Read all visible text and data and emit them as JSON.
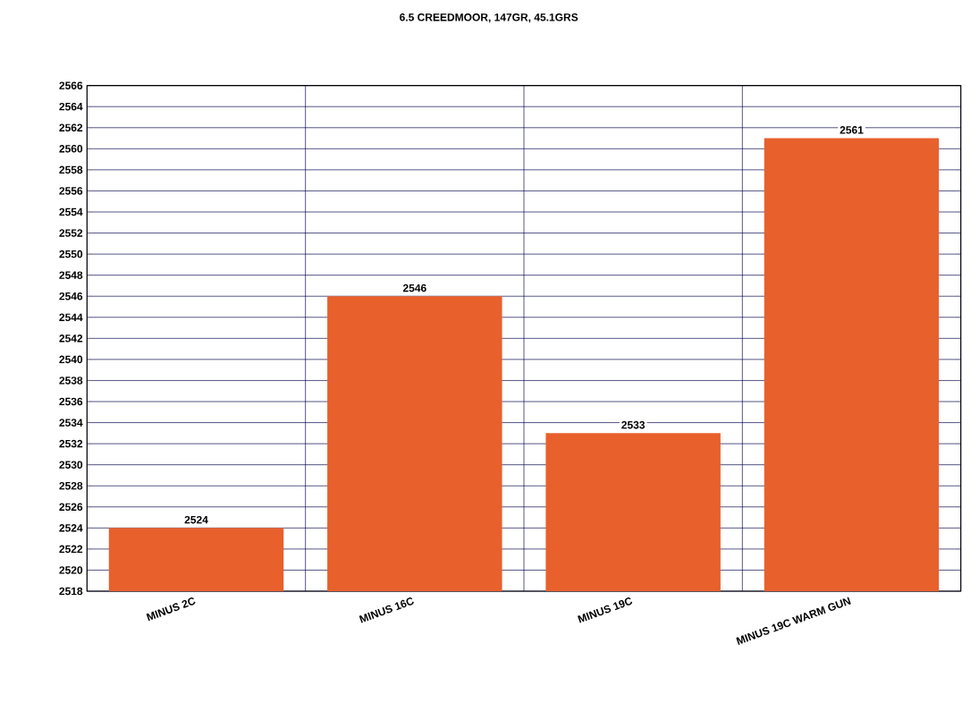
{
  "chart_data": {
    "type": "bar",
    "title": "6.5 CREEDMOOR, 147GR, 45.1GRS",
    "categories": [
      "MINUS 2C",
      "MINUS 16C",
      "MINUS 19C",
      "MINUS 19C WARM GUN"
    ],
    "values": [
      2524,
      2546,
      2533,
      2561
    ],
    "color": "#e8602c",
    "ylim": [
      2518,
      2566
    ],
    "yticks": [
      2518,
      2520,
      2522,
      2524,
      2526,
      2528,
      2530,
      2532,
      2534,
      2536,
      2538,
      2540,
      2542,
      2544,
      2546,
      2548,
      2550,
      2552,
      2554,
      2556,
      2558,
      2560,
      2562,
      2564,
      2566
    ],
    "grid": true,
    "data_labels": true
  }
}
